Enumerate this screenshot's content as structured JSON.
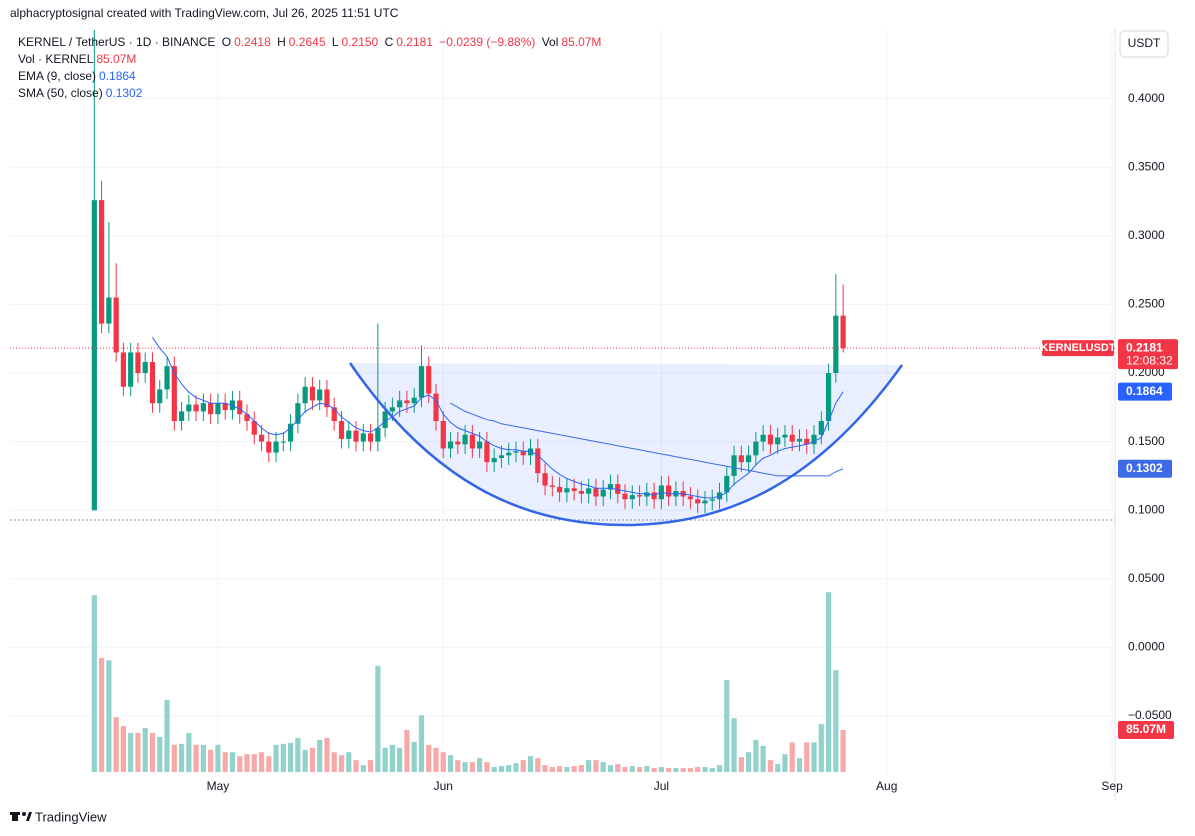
{
  "header": {
    "attribution": "alphacryptosignal created with TradingView.com, Jul 26, 2025 11:51 UTC",
    "brand": "TradingView"
  },
  "chart_data": {
    "type": "candlestick",
    "symbol": "KERNEL / TetherUS · 1D · BINANCE",
    "ohlc_legend": [
      {
        "key": "O",
        "value": "0.2418"
      },
      {
        "key": "H",
        "value": "0.2645"
      },
      {
        "key": "L",
        "value": "0.2150"
      },
      {
        "key": "C",
        "value": "0.2181"
      }
    ],
    "change": "−0.0239 (−9.88%)",
    "volume_key": "Vol",
    "volume_name": "Vol · KERNEL",
    "volume_label": "85.07M",
    "currency": "USDT",
    "last_price": {
      "symbol": "KERNELUSDT",
      "countdown": "12:08:32"
    },
    "up_color": "#089981",
    "down_color": "#f23645",
    "up_volume_color": "#92d2cc",
    "down_volume_color": "#f7a9a7",
    "x": [
      0,
      1,
      2,
      3,
      4,
      5,
      6,
      7,
      8,
      9,
      10,
      11,
      12,
      13,
      14,
      15,
      16,
      17,
      18,
      19,
      20,
      21,
      22,
      23,
      24,
      25,
      26,
      27,
      28,
      29,
      30,
      31,
      32,
      33,
      34,
      35,
      36,
      37,
      38,
      39,
      40,
      41,
      42,
      43,
      44,
      45,
      46,
      47,
      48,
      49,
      50,
      51,
      52,
      53,
      54,
      55,
      56,
      57,
      58,
      59,
      60,
      61,
      62,
      63,
      64,
      65,
      66,
      67,
      68,
      69,
      70,
      71,
      72,
      73,
      74,
      75,
      76,
      77,
      78,
      79,
      80,
      81,
      82,
      83,
      84,
      85,
      86,
      87,
      88,
      89,
      90,
      91,
      92,
      93,
      94,
      95,
      96,
      97,
      98,
      99,
      100,
      101,
      102,
      103
    ],
    "open": [
      0.1,
      0.326,
      0.236,
      0.255,
      0.215,
      0.19,
      0.215,
      0.2,
      0.208,
      0.178,
      0.188,
      0.205,
      0.165,
      0.172,
      0.177,
      0.172,
      0.178,
      0.17,
      0.178,
      0.173,
      0.18,
      0.17,
      0.165,
      0.155,
      0.15,
      0.142,
      0.15,
      0.15,
      0.163,
      0.178,
      0.19,
      0.18,
      0.188,
      0.175,
      0.165,
      0.152,
      0.158,
      0.15,
      0.156,
      0.15,
      0.16,
      0.172,
      0.175,
      0.18,
      0.178,
      0.182,
      0.205,
      0.185,
      0.165,
      0.145,
      0.15,
      0.148,
      0.155,
      0.145,
      0.15,
      0.135,
      0.138,
      0.14,
      0.142,
      0.143,
      0.14,
      0.145,
      0.127,
      0.118,
      0.117,
      0.113,
      0.116,
      0.114,
      0.112,
      0.116,
      0.11,
      0.115,
      0.119,
      0.112,
      0.108,
      0.111,
      0.11,
      0.113,
      0.108,
      0.118,
      0.11,
      0.114,
      0.11,
      0.108,
      0.105,
      0.107,
      0.108,
      0.113,
      0.125,
      0.14,
      0.135,
      0.14,
      0.15,
      0.155,
      0.148,
      0.153,
      0.155,
      0.15,
      0.152,
      0.148,
      0.155,
      0.165,
      0.2,
      0.2418
    ],
    "high": [
      0.45,
      0.34,
      0.31,
      0.28,
      0.222,
      0.222,
      0.222,
      0.215,
      0.215,
      0.195,
      0.212,
      0.212,
      0.179,
      0.184,
      0.184,
      0.185,
      0.185,
      0.185,
      0.185,
      0.187,
      0.187,
      0.177,
      0.172,
      0.162,
      0.157,
      0.157,
      0.157,
      0.17,
      0.185,
      0.197,
      0.197,
      0.195,
      0.195,
      0.182,
      0.172,
      0.165,
      0.165,
      0.163,
      0.163,
      0.236,
      0.179,
      0.182,
      0.187,
      0.187,
      0.189,
      0.22,
      0.212,
      0.192,
      0.172,
      0.157,
      0.157,
      0.162,
      0.162,
      0.157,
      0.157,
      0.145,
      0.147,
      0.149,
      0.15,
      0.15,
      0.152,
      0.152,
      0.134,
      0.125,
      0.124,
      0.123,
      0.123,
      0.121,
      0.123,
      0.123,
      0.122,
      0.126,
      0.126,
      0.119,
      0.118,
      0.118,
      0.12,
      0.12,
      0.125,
      0.125,
      0.121,
      0.121,
      0.117,
      0.115,
      0.114,
      0.115,
      0.12,
      0.132,
      0.147,
      0.147,
      0.147,
      0.157,
      0.162,
      0.162,
      0.16,
      0.162,
      0.162,
      0.159,
      0.159,
      0.162,
      0.172,
      0.207,
      0.272,
      0.2645
    ],
    "low": [
      0.1,
      0.229,
      0.229,
      0.208,
      0.183,
      0.183,
      0.193,
      0.193,
      0.171,
      0.171,
      0.181,
      0.158,
      0.158,
      0.165,
      0.165,
      0.165,
      0.163,
      0.163,
      0.166,
      0.166,
      0.163,
      0.158,
      0.148,
      0.143,
      0.135,
      0.135,
      0.143,
      0.143,
      0.156,
      0.171,
      0.173,
      0.173,
      0.168,
      0.158,
      0.145,
      0.145,
      0.143,
      0.143,
      0.143,
      0.143,
      0.153,
      0.165,
      0.168,
      0.171,
      0.171,
      0.175,
      0.178,
      0.158,
      0.138,
      0.138,
      0.141,
      0.141,
      0.138,
      0.138,
      0.128,
      0.128,
      0.131,
      0.133,
      0.135,
      0.133,
      0.133,
      0.12,
      0.111,
      0.11,
      0.106,
      0.106,
      0.107,
      0.105,
      0.105,
      0.103,
      0.103,
      0.108,
      0.105,
      0.101,
      0.101,
      0.103,
      0.103,
      0.101,
      0.101,
      0.103,
      0.103,
      0.103,
      0.101,
      0.098,
      0.098,
      0.1,
      0.101,
      0.106,
      0.118,
      0.128,
      0.128,
      0.133,
      0.143,
      0.141,
      0.141,
      0.146,
      0.143,
      0.143,
      0.141,
      0.141,
      0.148,
      0.158,
      0.193,
      0.215
    ],
    "close": [
      0.326,
      0.236,
      0.255,
      0.215,
      0.19,
      0.215,
      0.2,
      0.208,
      0.178,
      0.188,
      0.205,
      0.165,
      0.172,
      0.177,
      0.172,
      0.178,
      0.17,
      0.178,
      0.173,
      0.18,
      0.17,
      0.165,
      0.155,
      0.15,
      0.142,
      0.15,
      0.15,
      0.163,
      0.178,
      0.19,
      0.18,
      0.188,
      0.175,
      0.165,
      0.152,
      0.158,
      0.15,
      0.156,
      0.15,
      0.16,
      0.172,
      0.175,
      0.18,
      0.178,
      0.182,
      0.205,
      0.185,
      0.165,
      0.145,
      0.15,
      0.148,
      0.155,
      0.145,
      0.15,
      0.135,
      0.138,
      0.14,
      0.142,
      0.143,
      0.14,
      0.145,
      0.127,
      0.118,
      0.117,
      0.113,
      0.116,
      0.114,
      0.112,
      0.116,
      0.11,
      0.115,
      0.119,
      0.112,
      0.108,
      0.111,
      0.11,
      0.113,
      0.108,
      0.118,
      0.11,
      0.114,
      0.11,
      0.108,
      0.105,
      0.107,
      0.108,
      0.113,
      0.125,
      0.14,
      0.135,
      0.14,
      0.15,
      0.155,
      0.148,
      0.153,
      0.155,
      0.15,
      0.152,
      0.148,
      0.155,
      0.165,
      0.2,
      0.2418,
      0.2181
    ],
    "volume": [
      358,
      231,
      226,
      111,
      93,
      79,
      79,
      89,
      79,
      71,
      146,
      55,
      57,
      79,
      55,
      55,
      45,
      55,
      40,
      40,
      32,
      36,
      36,
      40,
      32,
      55,
      57,
      59,
      69,
      45,
      49,
      65,
      69,
      40,
      34,
      40,
      24,
      14,
      24,
      215,
      49,
      55,
      49,
      85,
      61,
      115,
      55,
      49,
      40,
      34,
      24,
      20,
      20,
      28,
      20,
      10,
      12,
      14,
      18,
      24,
      32,
      28,
      14,
      10,
      12,
      10,
      12,
      14,
      24,
      24,
      20,
      14,
      16,
      10,
      12,
      10,
      12,
      8,
      10,
      8,
      8,
      8,
      8,
      10,
      10,
      8,
      14,
      186,
      109,
      30,
      40,
      65,
      53,
      24,
      16,
      36,
      60,
      28,
      60,
      60,
      97,
      364,
      206,
      85.07
    ],
    "overlays": [
      {
        "name": "EMA (9, close)",
        "color": "#2962ff",
        "value_label": "0.1864",
        "values": [
          null,
          null,
          null,
          null,
          null,
          null,
          null,
          null,
          0.226,
          0.218,
          0.212,
          0.2,
          0.192,
          0.186,
          0.182,
          0.18,
          0.178,
          0.178,
          0.178,
          0.176,
          0.174,
          0.17,
          0.165,
          0.16,
          0.156,
          0.155,
          0.156,
          0.16,
          0.166,
          0.172,
          0.175,
          0.178,
          0.177,
          0.174,
          0.168,
          0.164,
          0.16,
          0.158,
          0.157,
          0.16,
          0.165,
          0.168,
          0.172,
          0.174,
          0.176,
          0.182,
          0.184,
          0.18,
          0.17,
          0.164,
          0.16,
          0.158,
          0.156,
          0.154,
          0.15,
          0.147,
          0.145,
          0.144,
          0.144,
          0.143,
          0.143,
          0.14,
          0.135,
          0.13,
          0.126,
          0.123,
          0.121,
          0.119,
          0.118,
          0.116,
          0.116,
          0.116,
          0.115,
          0.114,
          0.113,
          0.112,
          0.112,
          0.111,
          0.113,
          0.112,
          0.112,
          0.112,
          0.111,
          0.11,
          0.109,
          0.109,
          0.11,
          0.113,
          0.119,
          0.123,
          0.127,
          0.133,
          0.138,
          0.14,
          0.143,
          0.145,
          0.146,
          0.147,
          0.148,
          0.15,
          0.153,
          0.165,
          0.178,
          0.1864
        ]
      },
      {
        "name": "SMA (50, close)",
        "color": "#3d6be8",
        "value_label": "0.1302",
        "values": [
          null,
          null,
          null,
          null,
          null,
          null,
          null,
          null,
          null,
          null,
          null,
          null,
          null,
          null,
          null,
          null,
          null,
          null,
          null,
          null,
          null,
          null,
          null,
          null,
          null,
          null,
          null,
          null,
          null,
          null,
          null,
          null,
          null,
          null,
          null,
          null,
          null,
          null,
          null,
          null,
          null,
          null,
          null,
          null,
          null,
          null,
          null,
          null,
          null,
          0.178,
          0.175,
          0.172,
          0.17,
          0.168,
          0.166,
          0.165,
          0.163,
          0.162,
          0.161,
          0.16,
          0.159,
          0.158,
          0.157,
          0.156,
          0.155,
          0.154,
          0.153,
          0.152,
          0.151,
          0.15,
          0.149,
          0.148,
          0.147,
          0.146,
          0.145,
          0.144,
          0.143,
          0.142,
          0.141,
          0.14,
          0.139,
          0.138,
          0.137,
          0.136,
          0.135,
          0.134,
          0.133,
          0.132,
          0.131,
          0.13,
          0.129,
          0.128,
          0.127,
          0.126,
          0.125,
          0.125,
          0.125,
          0.125,
          0.125,
          0.125,
          0.125,
          0.125,
          0.128,
          0.1302
        ]
      }
    ],
    "xlim": [
      -11.6,
      140.4
    ],
    "xticks": [
      {
        "value": 17,
        "label": "May"
      },
      {
        "value": 48,
        "label": "Jun"
      },
      {
        "value": 78,
        "label": "Jul"
      },
      {
        "value": 109,
        "label": "Aug"
      },
      {
        "value": 140,
        "label": "Sep"
      }
    ],
    "ylim": [
      -0.093,
      0.45
    ],
    "yticks": [
      {
        "value": -0.05,
        "label": "−0.0500"
      },
      {
        "value": 0,
        "label": "0.0000"
      },
      {
        "value": 0.05,
        "label": "0.0500"
      },
      {
        "value": 0.1,
        "label": "0.1000"
      },
      {
        "value": 0.15,
        "label": "0.1500"
      },
      {
        "value": 0.2,
        "label": "0.2000"
      },
      {
        "value": 0.25,
        "label": "0.2500"
      },
      {
        "value": 0.3,
        "label": "0.3000"
      },
      {
        "value": 0.35,
        "label": "0.3500"
      },
      {
        "value": 0.4,
        "label": "0.4000"
      }
    ],
    "grid": true
  }
}
